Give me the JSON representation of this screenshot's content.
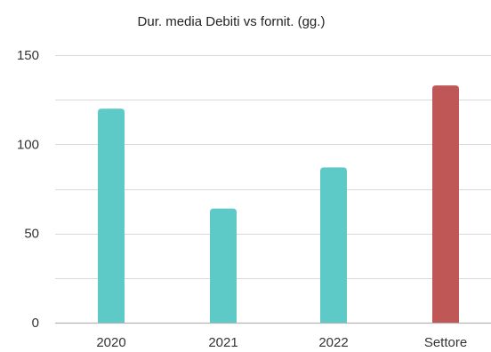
{
  "chart_data": {
    "type": "bar",
    "title": "Dur. media Debiti vs fornit. (gg.)",
    "xlabel": "",
    "ylabel": "",
    "categories": [
      "2020",
      "2021",
      "2022",
      "Settore"
    ],
    "values": [
      120,
      64,
      87,
      133
    ],
    "ylim": [
      0,
      150
    ],
    "yticks": [
      0,
      50,
      100,
      150
    ],
    "grid": true,
    "legend": "none",
    "bar_colors": [
      "#5ecac8",
      "#5ecac8",
      "#5ecac8",
      "#bf5757"
    ],
    "grid_color": "#d9d9d9",
    "axis_color": "#b3b3b3"
  }
}
